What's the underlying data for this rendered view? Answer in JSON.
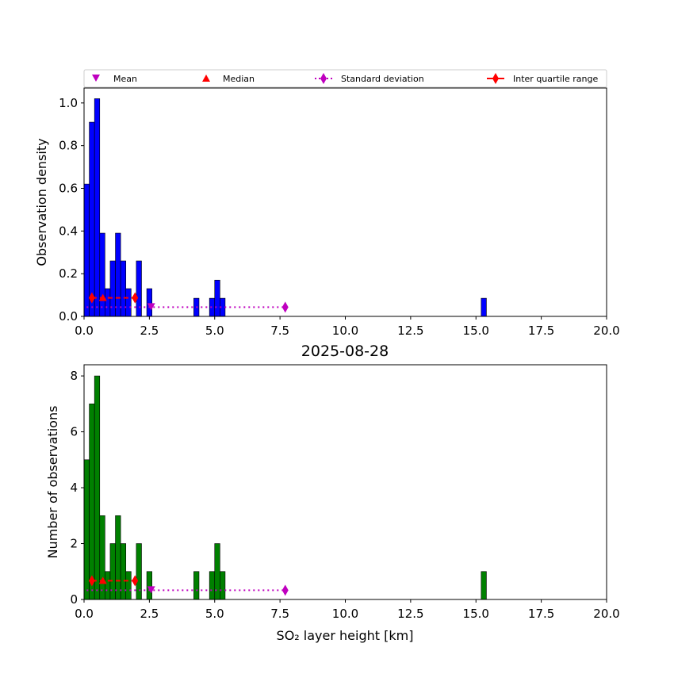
{
  "chart_data": [
    {
      "type": "bar",
      "title": "",
      "xlabel": "",
      "ylabel": "Observation density",
      "xlim": [
        0,
        20
      ],
      "ylim": [
        0,
        1.07
      ],
      "bar_color": "#0000ff",
      "bin_width": 0.2,
      "xticks": [
        "0.0",
        "2.5",
        "5.0",
        "7.5",
        "10.0",
        "12.5",
        "15.0",
        "17.5",
        "20.0"
      ],
      "yticks": [
        "0.0",
        "0.2",
        "0.4",
        "0.6",
        "0.8",
        "1.0"
      ],
      "ytick_values": [
        0,
        0.2,
        0.4,
        0.6,
        0.8,
        1.0
      ],
      "bins": [
        {
          "x": 0.0,
          "value": 0.62
        },
        {
          "x": 0.2,
          "value": 0.91
        },
        {
          "x": 0.4,
          "value": 1.02
        },
        {
          "x": 0.6,
          "value": 0.39
        },
        {
          "x": 0.8,
          "value": 0.13
        },
        {
          "x": 1.0,
          "value": 0.26
        },
        {
          "x": 1.2,
          "value": 0.39
        },
        {
          "x": 1.4,
          "value": 0.26
        },
        {
          "x": 1.6,
          "value": 0.13
        },
        {
          "x": 2.0,
          "value": 0.26
        },
        {
          "x": 2.4,
          "value": 0.13
        },
        {
          "x": 4.2,
          "value": 0.085
        },
        {
          "x": 4.8,
          "value": 0.085
        },
        {
          "x": 5.0,
          "value": 0.17
        },
        {
          "x": 5.2,
          "value": 0.085
        },
        {
          "x": 15.2,
          "value": 0.085
        }
      ],
      "stats": {
        "mean": 2.57,
        "median": 0.72,
        "std_marker": 7.7,
        "iqr": [
          0.3,
          1.95
        ],
        "iqr_y": 0.087,
        "std_y": 0.043
      },
      "legend": {
        "position": "top",
        "entries": [
          "Mean",
          "Median",
          "Standard deviation",
          "Inter quartile range"
        ]
      }
    },
    {
      "type": "bar",
      "title": "2025-08-28",
      "xlabel": "SO₂ layer height [km]",
      "ylabel": "Number of observations",
      "xlim": [
        0,
        20
      ],
      "ylim": [
        0,
        8.4
      ],
      "bar_color": "#008000",
      "bin_width": 0.2,
      "xticks": [
        "0.0",
        "2.5",
        "5.0",
        "7.5",
        "10.0",
        "12.5",
        "15.0",
        "17.5",
        "20.0"
      ],
      "yticks": [
        "0",
        "2",
        "4",
        "6",
        "8"
      ],
      "ytick_values": [
        0,
        2,
        4,
        6,
        8
      ],
      "bins": [
        {
          "x": 0.0,
          "value": 5
        },
        {
          "x": 0.2,
          "value": 7
        },
        {
          "x": 0.4,
          "value": 8
        },
        {
          "x": 0.6,
          "value": 3
        },
        {
          "x": 0.8,
          "value": 1
        },
        {
          "x": 1.0,
          "value": 2
        },
        {
          "x": 1.2,
          "value": 3
        },
        {
          "x": 1.4,
          "value": 2
        },
        {
          "x": 1.6,
          "value": 1
        },
        {
          "x": 2.0,
          "value": 2
        },
        {
          "x": 2.4,
          "value": 1
        },
        {
          "x": 4.2,
          "value": 1
        },
        {
          "x": 4.8,
          "value": 1
        },
        {
          "x": 5.0,
          "value": 2
        },
        {
          "x": 5.2,
          "value": 1
        },
        {
          "x": 15.2,
          "value": 1
        }
      ],
      "stats": {
        "mean": 2.57,
        "median": 0.72,
        "std_marker": 7.7,
        "iqr": [
          0.3,
          1.95
        ],
        "iqr_y": 0.67,
        "std_y": 0.33
      }
    }
  ],
  "colors": {
    "mean": "#bf00bf",
    "median": "#ff0000",
    "std": "#bf00bf",
    "iqr": "#ff0000"
  }
}
